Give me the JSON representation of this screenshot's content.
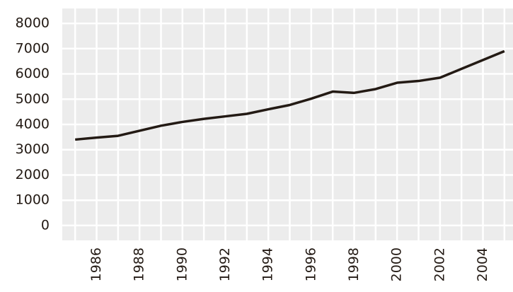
{
  "chart_data": {
    "type": "line",
    "x": [
      1985,
      1986,
      1987,
      1988,
      1989,
      1990,
      1991,
      1992,
      1993,
      1994,
      1995,
      1996,
      1997,
      1998,
      1999,
      2000,
      2001,
      2002,
      2003,
      2004,
      2005
    ],
    "series": [
      {
        "color": "#231a14",
        "values": [
          3400,
          3480,
          3550,
          3750,
          3950,
          4100,
          4220,
          4320,
          4420,
          4600,
          4770,
          5020,
          5300,
          5250,
          5400,
          5650,
          5720,
          5850,
          6200,
          6550,
          6900
        ]
      }
    ],
    "xlim": [
      1984.4,
      2005.4
    ],
    "ylim": [
      -590,
      8590
    ],
    "xticks": [
      1986,
      1988,
      1990,
      1992,
      1994,
      1996,
      1998,
      2000,
      2002,
      2004
    ],
    "yticks": [
      0,
      1000,
      2000,
      3000,
      4000,
      5000,
      6000,
      7000,
      8000
    ],
    "grid": true
  }
}
